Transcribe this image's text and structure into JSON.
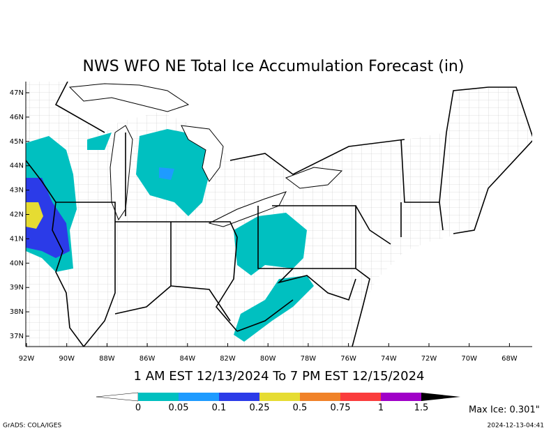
{
  "title": "NWS WFO NE Total Ice Accumulation Forecast (in)",
  "lat_labels": [
    "47N",
    "46N",
    "45N",
    "44N",
    "43N",
    "42N",
    "41N",
    "40N",
    "39N",
    "38N",
    "37N"
  ],
  "lon_labels": [
    "92W",
    "90W",
    "88W",
    "86W",
    "84W",
    "82W",
    "80W",
    "78W",
    "76W",
    "74W",
    "72W",
    "70W",
    "68W"
  ],
  "valid_period": "1 AM EST 12/13/2024 To 7 PM EST 12/15/2024",
  "colorbar": {
    "labels": [
      "0",
      "0.05",
      "0.1",
      "0.25",
      "0.5",
      "0.75",
      "1",
      "1.5"
    ],
    "below_color": "#ffffff",
    "colors": [
      "#00c0c0",
      "#1e9bff",
      "#2b3be8",
      "#e6dc32",
      "#f08228",
      "#fa3c3c",
      "#a000c8"
    ],
    "above_color": "#000000"
  },
  "max_ice": "Max Ice: 0.301\"",
  "footer_left": "GrADS: COLA/IGES",
  "footer_right": "2024-12-13-04:41"
}
